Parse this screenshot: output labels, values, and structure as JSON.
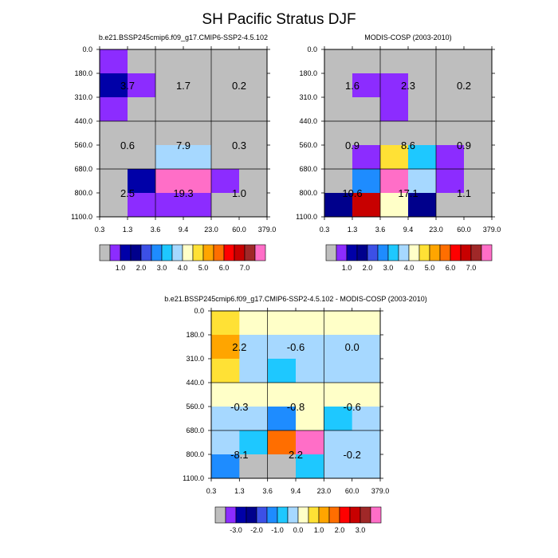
{
  "title": "SH Pacific Stratus DJF",
  "x_ticks": [
    "0.3",
    "1.3",
    "3.6",
    "9.4",
    "23.0",
    "60.0",
    "379.0"
  ],
  "y_ticks": [
    "0.0",
    "180.0",
    "310.0",
    "440.0",
    "560.0",
    "680.0",
    "800.0",
    "1100.0"
  ],
  "chart_data": [
    {
      "type": "heatmap",
      "title": "b.e21.BSSP245cmip6.f09_g17.CMIP6-SSP2-4.5.102",
      "cell_colors": [
        [
          "#8c2cff",
          "#bebebe",
          "#bebebe",
          "#bebebe",
          "#bebebe",
          "#bebebe"
        ],
        [
          "#0000a8",
          "#8c2cff",
          "#bebebe",
          "#bebebe",
          "#bebebe",
          "#bebebe"
        ],
        [
          "#8c2cff",
          "#bebebe",
          "#bebebe",
          "#bebebe",
          "#bebebe",
          "#bebebe"
        ],
        [
          "#bebebe",
          "#bebebe",
          "#bebebe",
          "#bebebe",
          "#bebebe",
          "#bebebe"
        ],
        [
          "#bebebe",
          "#bebebe",
          "#a6d8ff",
          "#a6d8ff",
          "#bebebe",
          "#bebebe"
        ],
        [
          "#bebebe",
          "#0000a8",
          "#ff6ec7",
          "#ff6ec7",
          "#8c2cff",
          "#bebebe"
        ],
        [
          "#bebebe",
          "#8c2cff",
          "#8c2cff",
          "#8c2cff",
          "#bebebe",
          "#bebebe"
        ]
      ],
      "summary_values": [
        [
          "3.7",
          "1.7",
          "0.2"
        ],
        [
          "0.6",
          "7.9",
          "0.3"
        ],
        [
          "2.5",
          "19.3",
          "1.0"
        ]
      ],
      "colorbar_labels": [
        "1.0",
        "2.0",
        "3.0",
        "4.0",
        "5.0",
        "6.0",
        "7.0"
      ]
    },
    {
      "type": "heatmap",
      "title": "MODIS-COSP (2003-2010)",
      "cell_colors": [
        [
          "#bebebe",
          "#bebebe",
          "#bebebe",
          "#bebebe",
          "#bebebe",
          "#bebebe"
        ],
        [
          "#bebebe",
          "#8c2cff",
          "#8c2cff",
          "#bebebe",
          "#bebebe",
          "#bebebe"
        ],
        [
          "#bebebe",
          "#bebebe",
          "#8c2cff",
          "#bebebe",
          "#bebebe",
          "#bebebe"
        ],
        [
          "#bebebe",
          "#bebebe",
          "#bebebe",
          "#bebebe",
          "#bebebe",
          "#bebebe"
        ],
        [
          "#bebebe",
          "#8c2cff",
          "#ffe135",
          "#1ec8ff",
          "#8c2cff",
          "#bebebe"
        ],
        [
          "#bebebe",
          "#1e8cff",
          "#ff6ec7",
          "#a6d8ff",
          "#8c2cff",
          "#bebebe"
        ],
        [
          "#00008c",
          "#c80000",
          "#ffffc8",
          "#00008c",
          "#bebebe",
          "#bebebe"
        ]
      ],
      "summary_values": [
        [
          "1.6",
          "2.3",
          "0.2"
        ],
        [
          "0.9",
          "8.6",
          "0.9"
        ],
        [
          "10.6",
          "17.1",
          "1.1"
        ]
      ],
      "colorbar_labels": [
        "1.0",
        "2.0",
        "3.0",
        "4.0",
        "5.0",
        "6.0",
        "7.0"
      ]
    },
    {
      "type": "heatmap",
      "title": "b.e21.BSSP245cmip6.f09_g17.CMIP6-SSP2-4.5.102 - MODIS-COSP (2003-2010)",
      "cell_colors": [
        [
          "#ffe135",
          "#ffffc8",
          "#ffffc8",
          "#ffffc8",
          "#ffffc8",
          "#ffffc8"
        ],
        [
          "#ffa500",
          "#a6d8ff",
          "#a6d8ff",
          "#a6d8ff",
          "#a6d8ff",
          "#a6d8ff"
        ],
        [
          "#ffe135",
          "#a6d8ff",
          "#1ec8ff",
          "#a6d8ff",
          "#a6d8ff",
          "#a6d8ff"
        ],
        [
          "#ffffc8",
          "#ffffc8",
          "#ffffc8",
          "#ffffc8",
          "#ffffc8",
          "#ffffc8"
        ],
        [
          "#a6d8ff",
          "#a6d8ff",
          "#1e8cff",
          "#ffffc8",
          "#1ec8ff",
          "#a6d8ff"
        ],
        [
          "#a6d8ff",
          "#1ec8ff",
          "#ff6e00",
          "#ff6ec7",
          "#a6d8ff",
          "#a6d8ff"
        ],
        [
          "#1e8cff",
          "#bebebe",
          "#bebebe",
          "#1ec8ff",
          "#a6d8ff",
          "#a6d8ff"
        ]
      ],
      "summary_values": [
        [
          "2.2",
          "-0.6",
          "0.0"
        ],
        [
          "-0.3",
          "-0.8",
          "-0.6"
        ],
        [
          "-8.1",
          "2.2",
          "-0.2"
        ]
      ],
      "colorbar_labels": [
        "-3.0",
        "-2.0",
        "-1.0",
        "0.0",
        "1.0",
        "2.0",
        "3.0"
      ]
    }
  ],
  "colorbar_colors": [
    "#bebebe",
    "#8c2cff",
    "#0000a8",
    "#00008c",
    "#3c50e6",
    "#1e8cff",
    "#1ec8ff",
    "#a6d8ff",
    "#ffffc8",
    "#ffe135",
    "#ffa500",
    "#ff6e00",
    "#ff0000",
    "#c80000",
    "#a02828",
    "#ff6ec7"
  ]
}
